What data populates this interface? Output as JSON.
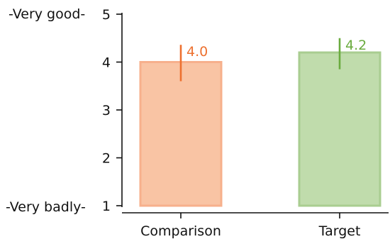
{
  "chart_data": {
    "type": "bar",
    "categories": [
      "Comparison",
      "Target"
    ],
    "values": [
      4.0,
      4.2
    ],
    "error_bars": [
      {
        "low": 3.6,
        "high": 4.36
      },
      {
        "low": 3.85,
        "high": 4.5
      }
    ],
    "data_labels": [
      "4.0",
      "4.2"
    ],
    "ylim": [
      1,
      5
    ],
    "yticks": [
      1,
      2,
      3,
      4,
      5
    ],
    "ytick_labels": [
      "1",
      "2",
      "3",
      "4",
      "5"
    ],
    "y_endpoint_labels": {
      "top": "-Very good-",
      "bottom": "-Very badly-"
    },
    "grid": false,
    "colors": {
      "fills": [
        "#f9c4a4",
        "#c0dcac"
      ],
      "edges": [
        "#f7b08c",
        "#a9cd90"
      ],
      "accents": [
        "#ed7130",
        "#6aab3e"
      ]
    }
  }
}
